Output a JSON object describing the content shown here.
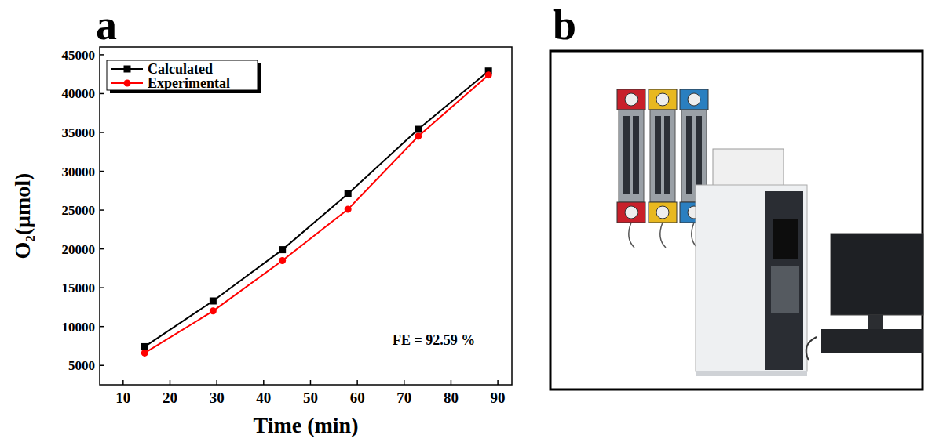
{
  "chart_data": {
    "type": "line",
    "x_label": "Time (min)",
    "y_label": "O₂(μmol)",
    "x": [
      14.6,
      29.2,
      44,
      58,
      73,
      88
    ],
    "series": [
      {
        "name": "Calculated",
        "color": "#000000",
        "marker": "square",
        "values": [
          7400,
          13300,
          19900,
          27100,
          35400,
          42900
        ]
      },
      {
        "name": "Experimental",
        "color": "#ff0000",
        "marker": "circle",
        "values": [
          6600,
          12000,
          18500,
          25100,
          34500,
          42400
        ]
      }
    ],
    "xlim": [
      5,
      93
    ],
    "xticks": [
      10,
      20,
      30,
      40,
      50,
      60,
      70,
      80,
      90
    ],
    "ylim": [
      2500,
      46000
    ],
    "yticks": [
      5000,
      10000,
      15000,
      20000,
      25000,
      30000,
      35000,
      40000,
      45000
    ],
    "annotations": [
      "FE = 92.59 %"
    ],
    "legend": "upper left",
    "grid": false
  },
  "panel_labels": [
    "a",
    "b"
  ]
}
